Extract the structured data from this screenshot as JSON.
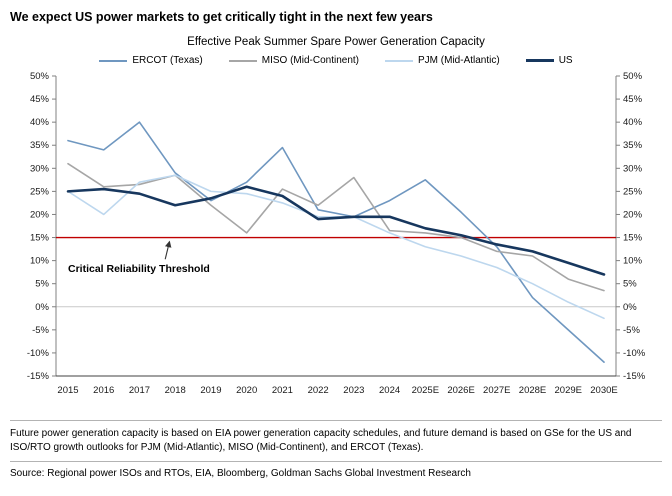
{
  "headline": "We expect US power markets to get critically tight in the next few years",
  "chart_data": {
    "type": "line",
    "title": "Effective Peak Summer Spare Power Generation Capacity",
    "categories": [
      "2015",
      "2016",
      "2017",
      "2018",
      "2019",
      "2020",
      "2021",
      "2022",
      "2023",
      "2024",
      "2025E",
      "2026E",
      "2027E",
      "2028E",
      "2029E",
      "2030E"
    ],
    "series": [
      {
        "name": "ERCOT (Texas)",
        "color": "#6f97c0",
        "width": 1.6,
        "values": [
          36,
          34,
          40,
          29,
          23,
          27,
          34.5,
          21,
          19.5,
          23,
          27.5,
          20.5,
          13,
          2,
          -5,
          -12
        ]
      },
      {
        "name": "MISO (Mid-Continent)",
        "color": "#a6a6a6",
        "width": 1.6,
        "values": [
          31,
          26,
          26.5,
          28.5,
          22,
          16,
          25.5,
          22,
          28,
          16.5,
          16,
          15,
          12,
          11,
          6,
          3.5
        ]
      },
      {
        "name": "PJM (Mid-Atlantic)",
        "color": "#bdd7ee",
        "width": 1.6,
        "values": [
          25,
          20,
          27,
          28.5,
          25,
          24.5,
          22.5,
          19.5,
          19.5,
          16,
          13,
          11,
          8.5,
          5,
          1,
          -2.5
        ]
      },
      {
        "name": "US",
        "color": "#17375e",
        "width": 2.6,
        "values": [
          25,
          25.5,
          24.5,
          22,
          23.5,
          26,
          24,
          19,
          19.5,
          19.5,
          17,
          15.5,
          13.5,
          12,
          9.5,
          7
        ]
      }
    ],
    "threshold": {
      "value": 15,
      "color": "#c00000",
      "label": "Critical Reliability Threshold"
    },
    "ylim": [
      -15,
      50
    ],
    "ytick_step": 5,
    "tick_suffix": "%",
    "grid_zero_line": true,
    "legend_position": "top"
  },
  "footnote": "Future power generation capacity is based on EIA power generation capacity schedules, and future demand is based on GSe for the US and ISO/RTO growth outlooks for PJM (Mid-Atlantic), MISO (Mid-Continent), and ERCOT (Texas).",
  "source": "Source: Regional power ISOs and RTOs, EIA, Bloomberg, Goldman Sachs Global Investment Research"
}
